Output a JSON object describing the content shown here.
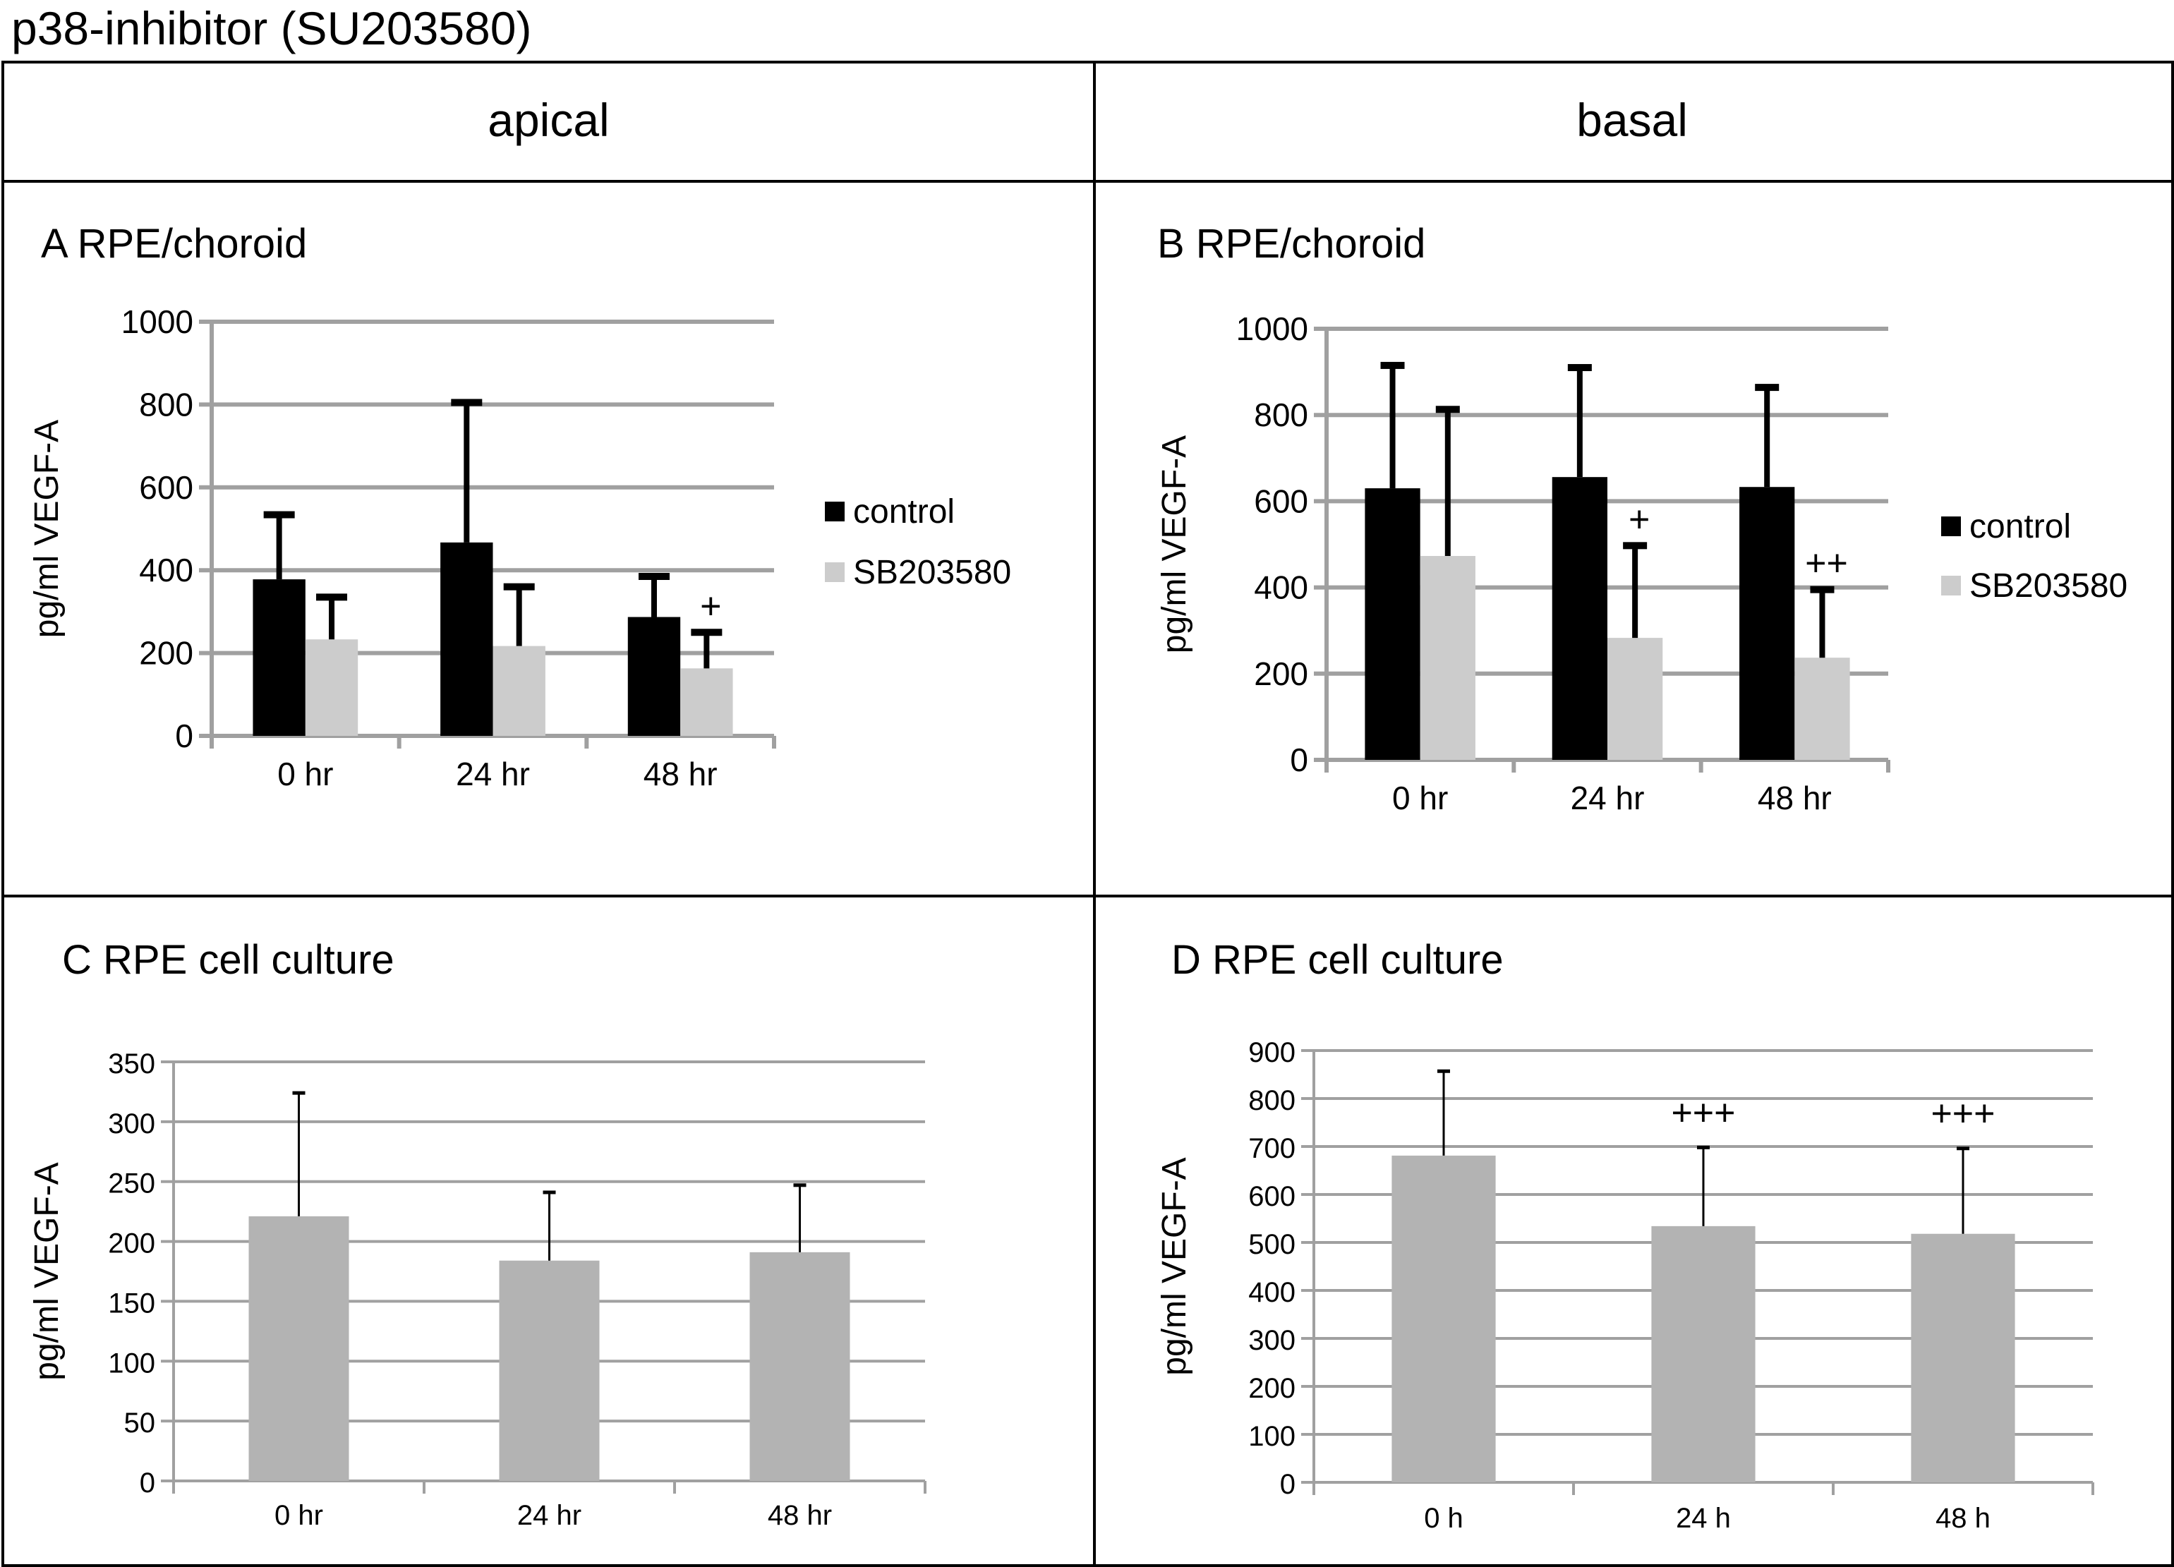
{
  "figure": {
    "title": "p38-inhibitor (SU203580)",
    "columns": [
      "apical",
      "basal"
    ]
  },
  "colors": {
    "control": "#000000",
    "sb203580": "#cccccc",
    "culture": "#b3b3b3",
    "grid": "#a0a0a0"
  },
  "chart_data": [
    {
      "id": "A",
      "type": "bar",
      "title": "A  RPE/choroid",
      "column": "apical",
      "xlabel": "",
      "ylabel": "pg/ml VEGF-A",
      "ylim": [
        0,
        1000
      ],
      "yticks": [
        0,
        200,
        400,
        600,
        800,
        1000
      ],
      "ytick_labels": [
        "0",
        "200",
        "400",
        "600",
        "800",
        "1000"
      ],
      "grid": true,
      "categories": [
        "0 hr",
        "24 hr",
        "48 hr"
      ],
      "legend": [
        "control",
        "SB203580"
      ],
      "legend_position": "right",
      "series": [
        {
          "name": "control",
          "values": [
            378,
            467,
            287
          ],
          "error_upper": [
            534,
            805,
            385
          ]
        },
        {
          "name": "SB203580",
          "values": [
            233,
            217,
            163
          ],
          "error_upper": [
            335,
            360,
            250
          ]
        }
      ],
      "annotations": [
        {
          "category": "48 hr",
          "series": "SB203580",
          "text": "+"
        }
      ]
    },
    {
      "id": "B",
      "type": "bar",
      "title": "B  RPE/choroid",
      "column": "basal",
      "xlabel": "",
      "ylabel": "pg/ml VEGF-A",
      "ylim": [
        0,
        1000
      ],
      "yticks": [
        0,
        200,
        400,
        600,
        800,
        1000
      ],
      "ytick_labels": [
        "0",
        "200",
        "400",
        "600",
        "800",
        "1000"
      ],
      "grid": true,
      "categories": [
        "0 hr",
        "24 hr",
        "48 hr"
      ],
      "legend": [
        "control",
        "SB203580"
      ],
      "legend_position": "right",
      "series": [
        {
          "name": "control",
          "values": [
            630,
            656,
            633
          ],
          "error_upper": [
            915,
            910,
            864
          ]
        },
        {
          "name": "SB203580",
          "values": [
            473,
            283,
            237
          ],
          "error_upper": [
            813,
            497,
            395
          ]
        }
      ],
      "annotations": [
        {
          "category": "24 hr",
          "series": "SB203580",
          "text": "+"
        },
        {
          "category": "48 hr",
          "series": "SB203580",
          "text": "++"
        }
      ]
    },
    {
      "id": "C",
      "type": "bar",
      "title": "C  RPE cell culture",
      "column": "apical",
      "xlabel": "",
      "ylabel": "pg/ml VEGF-A",
      "ylim": [
        0,
        350
      ],
      "yticks": [
        0,
        50,
        100,
        150,
        200,
        250,
        300,
        350
      ],
      "ytick_labels": [
        "0",
        "50",
        "100",
        "150",
        "200",
        "250",
        "300",
        "350"
      ],
      "grid": true,
      "categories": [
        "0 hr",
        "24 hr",
        "48 hr"
      ],
      "series": [
        {
          "name": "SB203580",
          "values": [
            221,
            184,
            191
          ],
          "error_upper": [
            324,
            241,
            247
          ]
        }
      ],
      "annotations": []
    },
    {
      "id": "D",
      "type": "bar",
      "title": "D  RPE cell culture",
      "column": "basal",
      "xlabel": "",
      "ylabel": "pg/ml VEGF-A",
      "ylim": [
        0,
        900
      ],
      "yticks": [
        0,
        100,
        200,
        300,
        400,
        500,
        600,
        700,
        800,
        900
      ],
      "ytick_labels": [
        "0",
        "100",
        "200",
        "300",
        "400",
        "500",
        "600",
        "700",
        "800",
        "900"
      ],
      "grid": true,
      "categories": [
        "0 h",
        "24 h",
        "48 h"
      ],
      "series": [
        {
          "name": "SB203580",
          "values": [
            681,
            534,
            518
          ],
          "error_upper": [
            857,
            698,
            696
          ]
        }
      ],
      "annotations": [
        {
          "category": "24 h",
          "series": "SB203580",
          "text": "+++"
        },
        {
          "category": "48 h",
          "series": "SB203580",
          "text": "+++"
        }
      ]
    }
  ]
}
